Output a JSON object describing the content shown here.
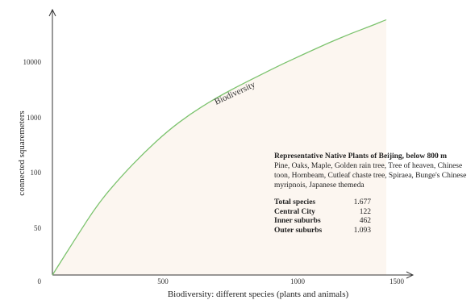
{
  "chart_data": {
    "type": "line",
    "xlabel": "Biodiversity: different species (plants and animals)",
    "ylabel": "connected squaremeters",
    "x_ticks": [
      "0",
      "500",
      "1000",
      "1500"
    ],
    "y_ticks": [
      "0",
      "50",
      "100",
      "1000",
      "10000"
    ],
    "series": [
      {
        "name": "Biodiversity",
        "color": "#7cc36e",
        "points": [
          [
            0,
            0
          ],
          [
            100,
            38
          ],
          [
            200,
            75
          ],
          [
            300,
            103
          ],
          [
            400,
            128
          ],
          [
            500,
            150
          ],
          [
            600,
            168
          ],
          [
            700,
            183
          ],
          [
            800,
            196
          ],
          [
            900,
            208
          ],
          [
            1000,
            220
          ],
          [
            1100,
            231
          ],
          [
            1200,
            242
          ],
          [
            1300,
            252
          ],
          [
            1400,
            261
          ],
          [
            1450,
            266
          ]
        ]
      }
    ],
    "grid": false
  },
  "info_box": {
    "title": "Representative Native Plants of Beijing, below 800 m",
    "description": "Pine, Oaks, Maple, Golden rain tree, Tree of heaven, Chinese toon, Hornbeam, Cutleaf chaste tree, Spiraea, Bunge's Chinese myripnois, Japanese themeda",
    "stats": [
      {
        "label": "Total species",
        "value": "1.677"
      },
      {
        "label": "Central City",
        "value": "122"
      },
      {
        "label": "Inner suburbs",
        "value": "462"
      },
      {
        "label": "Outer suburbs",
        "value": "1.093"
      }
    ]
  }
}
